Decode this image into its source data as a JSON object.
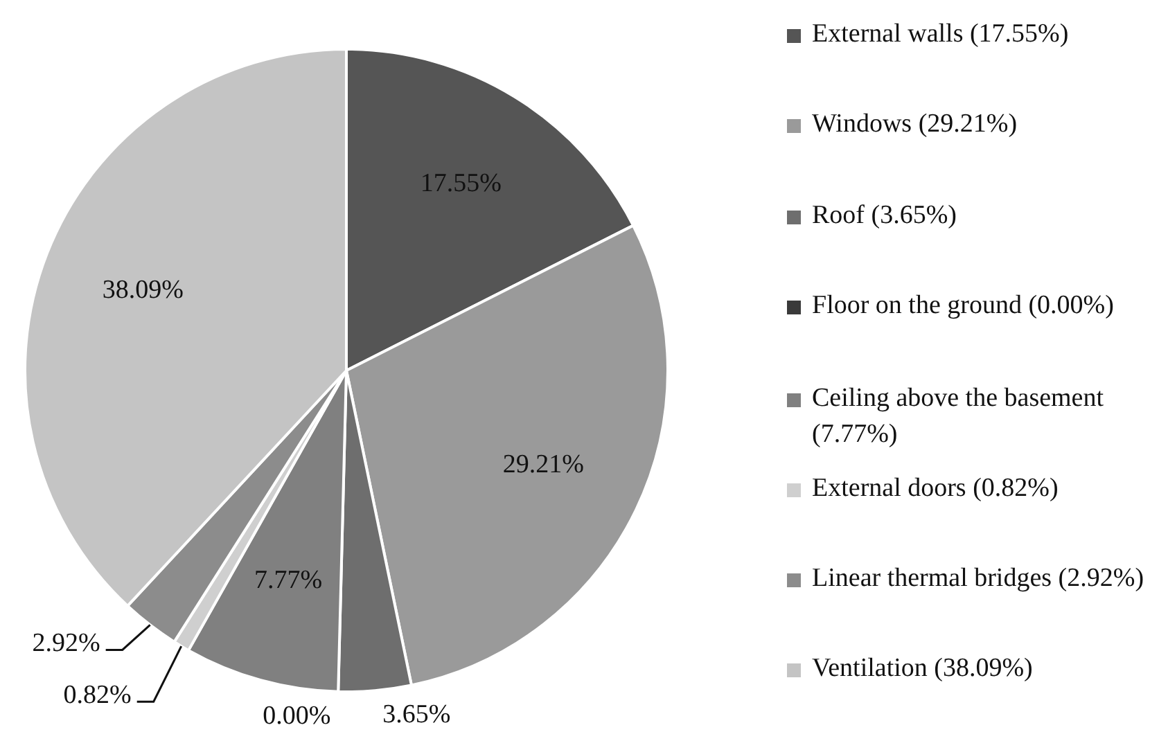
{
  "chart_data": {
    "type": "pie",
    "categories": [
      "External walls (17.55%)",
      "Windows (29.21%)",
      "Roof (3.65%)",
      "Floor on the ground (0.00%)",
      "Ceiling above the basement (7.77%)",
      "External doors (0.82%)",
      "Linear thermal bridges (2.92%)",
      "Ventilation (38.09%)"
    ],
    "values": [
      17.55,
      29.21,
      3.65,
      0.0,
      7.77,
      0.82,
      2.92,
      38.09
    ],
    "colors": [
      "#555555",
      "#9a9a9a",
      "#6e6e6e",
      "#3a3a3a",
      "#808080",
      "#cfcfcf",
      "#8c8c8c",
      "#c4c4c4"
    ],
    "value_labels": [
      "17.55%",
      "29.21%",
      "3.65%",
      "0.00%",
      "7.77%",
      "0.82%",
      "2.92%",
      "38.09%"
    ],
    "legend": "right"
  }
}
